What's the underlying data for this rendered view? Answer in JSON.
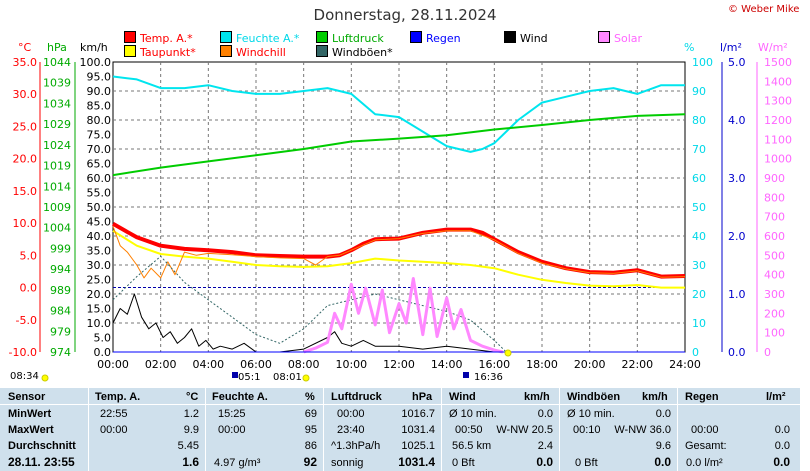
{
  "header": {
    "title": "Donnerstag, 28.11.2024",
    "copyright": "© Weber Mike"
  },
  "legend": [
    {
      "label": "Temp. A.*",
      "color": "#ff0000",
      "text_color": "#ff0000"
    },
    {
      "label": "Feuchte A.*",
      "color": "#00e5ee",
      "text_color": "#00d8e8"
    },
    {
      "label": "Luftdruck",
      "color": "#00cc00",
      "text_color": "#00aa00"
    },
    {
      "label": "Regen",
      "color": "#0000ff",
      "text_color": "#0000ff"
    },
    {
      "label": "Wind",
      "color": "#000000",
      "text_color": "#000000"
    },
    {
      "label": "Solar",
      "color": "#ff88ff",
      "text_color": "#ff66ff"
    },
    {
      "label": "Taupunkt*",
      "color": "#ffff00",
      "text_color": "#ff0000"
    },
    {
      "label": "Windchill",
      "color": "#ff8000",
      "text_color": "#ff0000"
    },
    {
      "label": "Windböen*",
      "color": "#336666",
      "text_color": "#000000"
    }
  ],
  "units": {
    "temp": "°C",
    "pressure": "hPa",
    "wind": "km/h",
    "humidity": "%",
    "rain": "l/m²",
    "solar": "W/m²"
  },
  "footer": {
    "time_left": "08:34",
    "sunrise": "05:1",
    "sunrise2": "08:01",
    "sunset": "16:36"
  },
  "chart_data": {
    "type": "line",
    "x_ticks": [
      "00:00",
      "02:00",
      "04:00",
      "06:00",
      "08:00",
      "10:00",
      "12:00",
      "14:00",
      "16:00",
      "18:00",
      "20:00",
      "22:00",
      "24:00"
    ],
    "x_range_hours": [
      0,
      24
    ],
    "axes": {
      "temp": {
        "ticks": [
          "35.0",
          "30.0",
          "25.0",
          "20.0",
          "15.0",
          "10.0",
          "5.0",
          "0.0",
          "-5.0",
          "-10.0"
        ],
        "range": [
          -10,
          35
        ]
      },
      "pressure": {
        "ticks": [
          "1044",
          "1039",
          "1034",
          "1029",
          "1024",
          "1019",
          "1014",
          "1009",
          "1004",
          "999",
          "994",
          "989",
          "984",
          "979",
          "974"
        ],
        "range": [
          974,
          1044
        ]
      },
      "wind": {
        "ticks": [
          "100.0",
          "95.0",
          "90.0",
          "85.0",
          "80.0",
          "75.0",
          "70.0",
          "65.0",
          "60.0",
          "55.0",
          "50.0",
          "45.0",
          "40.0",
          "35.0",
          "30.0",
          "25.0",
          "20.0",
          "15.0",
          "10.0",
          "5.0",
          "0.0"
        ],
        "range": [
          0,
          100
        ]
      },
      "humidity": {
        "ticks": [
          "100",
          "90",
          "80",
          "70",
          "60",
          "50",
          "40",
          "30",
          "20",
          "10",
          "0"
        ],
        "range": [
          0,
          100
        ]
      },
      "rain": {
        "ticks": [
          "5.0",
          "4.0",
          "3.0",
          "2.0",
          "1.0",
          "0.0"
        ],
        "range": [
          0,
          5
        ]
      },
      "solar": {
        "ticks": [
          "1500",
          "1400",
          "1300",
          "1200",
          "1100",
          "1000",
          "900",
          "800",
          "700",
          "600",
          "500",
          "400",
          "300",
          "200",
          "100",
          "0"
        ],
        "range": [
          0,
          1500
        ]
      }
    },
    "series": [
      {
        "name": "Temp. A.",
        "axis": "temp",
        "color": "#ff0000",
        "width": 4,
        "x": [
          0,
          1,
          2,
          3,
          4,
          5,
          6,
          7,
          8,
          9,
          9.5,
          10,
          10.5,
          11,
          12,
          13,
          14,
          15,
          15.5,
          16,
          17,
          18,
          19,
          20,
          21,
          22,
          23,
          24
        ],
        "y": [
          9.9,
          7.8,
          6.5,
          6.0,
          5.8,
          5.5,
          5.0,
          4.9,
          4.8,
          4.8,
          5.0,
          5.8,
          6.8,
          7.5,
          7.6,
          8.5,
          9.0,
          9.0,
          8.5,
          7.5,
          5.5,
          4.0,
          3.0,
          2.4,
          2.3,
          2.7,
          1.7,
          1.8
        ]
      },
      {
        "name": "Taupunkt",
        "axis": "temp",
        "color": "#ffff00",
        "width": 2,
        "x": [
          0,
          1,
          2,
          3,
          4,
          5,
          6,
          7,
          8,
          9,
          10,
          11,
          12,
          13,
          14,
          15,
          16,
          17,
          18,
          19,
          20,
          21,
          22,
          23,
          24
        ],
        "y": [
          8.8,
          6.5,
          5.2,
          4.8,
          4.5,
          4.0,
          3.5,
          3.3,
          3.2,
          3.3,
          3.8,
          4.5,
          4.2,
          4.0,
          3.8,
          3.5,
          3.0,
          2.0,
          1.2,
          0.7,
          0.3,
          0.2,
          0.4,
          0.0,
          0.0
        ]
      },
      {
        "name": "Windchill",
        "axis": "temp",
        "color": "#ff8000",
        "width": 1,
        "x": [
          0,
          0.3,
          0.6,
          1,
          1.3,
          1.6,
          2,
          2.3,
          2.6,
          3,
          3.5,
          4,
          5,
          6,
          7,
          8,
          8.5,
          9,
          9.5,
          10,
          11,
          12,
          13,
          14,
          15,
          16,
          17,
          18,
          19,
          20,
          21,
          22,
          23,
          24
        ],
        "y": [
          9.5,
          6.5,
          5.5,
          3.5,
          1.5,
          3.0,
          1.5,
          4.0,
          2.0,
          5.5,
          5.0,
          5.3,
          5.1,
          4.8,
          4.6,
          4.5,
          3.5,
          4.8,
          5.0,
          5.8,
          7.4,
          7.6,
          8.4,
          8.8,
          8.8,
          7.4,
          5.3,
          3.8,
          2.9,
          2.3,
          2.2,
          2.6,
          1.6,
          1.7
        ]
      },
      {
        "name": "Feuchte A.",
        "axis": "humidity",
        "color": "#00e5ee",
        "width": 2,
        "x": [
          0,
          1,
          2,
          3,
          4,
          5,
          6,
          7,
          8,
          9,
          10,
          11,
          12,
          13,
          14,
          15,
          15.5,
          16,
          17,
          18,
          19,
          20,
          21,
          22,
          23,
          24
        ],
        "y": [
          95,
          94,
          91,
          91,
          92,
          90,
          89,
          89,
          90,
          91,
          89,
          82,
          81,
          76,
          71,
          69,
          70,
          72,
          80,
          86,
          88,
          90,
          91,
          89,
          92,
          92
        ]
      },
      {
        "name": "Luftdruck",
        "axis": "pressure",
        "color": "#00cc00",
        "width": 2,
        "x": [
          0,
          2,
          4,
          6,
          8,
          10,
          12,
          14,
          16,
          18,
          20,
          22,
          24
        ],
        "y": [
          1016.7,
          1018.5,
          1020.0,
          1021.5,
          1023.0,
          1024.8,
          1025.5,
          1026.3,
          1027.7,
          1028.8,
          1030.0,
          1031.0,
          1031.4
        ]
      },
      {
        "name": "Wind",
        "axis": "wind",
        "color": "#000000",
        "width": 1,
        "x": [
          0,
          0.3,
          0.6,
          0.9,
          1.2,
          1.5,
          1.8,
          2.1,
          2.4,
          2.7,
          3,
          3.3,
          3.6,
          3.9,
          4.2,
          4.5,
          5,
          5.5,
          6,
          7,
          8,
          9,
          9.3,
          9.6,
          10,
          10.5,
          11,
          12,
          13,
          14,
          15,
          16,
          17,
          18,
          24
        ],
        "y": [
          10,
          15,
          13,
          20,
          12,
          8,
          10,
          5,
          7,
          3,
          5,
          8,
          2,
          4,
          1,
          2,
          1,
          3,
          0,
          0,
          1,
          5,
          7,
          3,
          2,
          4,
          2,
          2,
          1,
          2,
          1,
          0,
          0,
          0,
          0
        ]
      },
      {
        "name": "Windböen",
        "axis": "wind",
        "color": "#336666",
        "width": 1,
        "dashed": true,
        "x": [
          0,
          1,
          2,
          3,
          4,
          5,
          6,
          7,
          8,
          9,
          10,
          11,
          12,
          13,
          14,
          15,
          16,
          16.5,
          24
        ],
        "y": [
          18,
          26,
          33,
          24,
          18,
          12,
          6,
          3,
          8,
          16,
          18,
          20,
          18,
          16,
          14,
          11,
          4,
          0,
          0
        ]
      },
      {
        "name": "Solar",
        "axis": "solar",
        "color": "#ff88ff",
        "width": 3,
        "x": [
          8.0,
          8.5,
          9,
          9.3,
          9.6,
          10,
          10.3,
          10.6,
          11,
          11.3,
          11.6,
          12,
          12.3,
          12.6,
          13,
          13.3,
          13.6,
          14,
          14.3,
          14.6,
          15,
          15.5,
          16,
          16.36
        ],
        "y": [
          0,
          20,
          50,
          200,
          120,
          350,
          200,
          330,
          140,
          320,
          100,
          250,
          150,
          380,
          90,
          330,
          80,
          280,
          120,
          220,
          60,
          30,
          10,
          0
        ]
      },
      {
        "name": "Regen",
        "axis": "rain",
        "color": "#0000ff",
        "width": 1,
        "x": [
          0,
          24
        ],
        "y": [
          0,
          0
        ]
      }
    ],
    "reference_line": {
      "axis": "temp",
      "value": 0,
      "color": "#0000aa",
      "dashed": true
    }
  },
  "table": {
    "headers": {
      "sensor": "Sensor",
      "temp": "Temp. A.",
      "temp_unit": "°C",
      "hum": "Feuchte A.",
      "hum_unit": "%",
      "press": "Luftdruck",
      "press_unit": "hPa",
      "wind": "Wind",
      "wind_unit": "km/h",
      "gust": "Windböen",
      "gust_unit": "km/h",
      "rain": "Regen",
      "rain_unit": "l/m²"
    },
    "min": {
      "label": "MinWert",
      "temp_time": "22:55",
      "temp_val": "1.2",
      "hum_time": "15:25",
      "hum_val": "69",
      "press_time": "00:00",
      "press_val": "1016.7",
      "wind_desc": "Ø 10 min.",
      "wind_val": "0.0",
      "gust_desc": "Ø 10 min.",
      "gust_val": "0.0"
    },
    "max": {
      "label": "MaxWert",
      "temp_time": "00:00",
      "temp_val": "9.9",
      "hum_time": "00:00",
      "hum_val": "95",
      "press_time": "23:40",
      "press_val": "1031.4",
      "wind_time": "00:50",
      "wind_desc": "W-NW 20.5",
      "gust_time": "00:10",
      "gust_desc": "W-NW 36.0",
      "rain_time": "00:00",
      "rain_val": "0.0"
    },
    "avg": {
      "label": "Durchschnitt",
      "temp_val": "5.45",
      "hum_val": "86",
      "press_desc": "^1.3hPa/h",
      "press_val": "1025.1",
      "wind_desc": "56.5 km",
      "wind_val": "2.4",
      "gust_val": "9.6",
      "rain_desc": "Gesamt:",
      "rain_val": "0.0"
    },
    "current": {
      "label": "28.11. 23:55",
      "temp_val": "1.6",
      "hum_desc": "4.97 g/m³",
      "hum_val": "92",
      "press_desc": "sonnig",
      "press_val": "1031.4",
      "wind_desc": "0 Bft",
      "wind_val": "0.0",
      "gust_desc": "0 Bft",
      "gust_val": "0.0",
      "rain_desc": "0.0 l/m²",
      "rain_val": "0.0"
    }
  }
}
